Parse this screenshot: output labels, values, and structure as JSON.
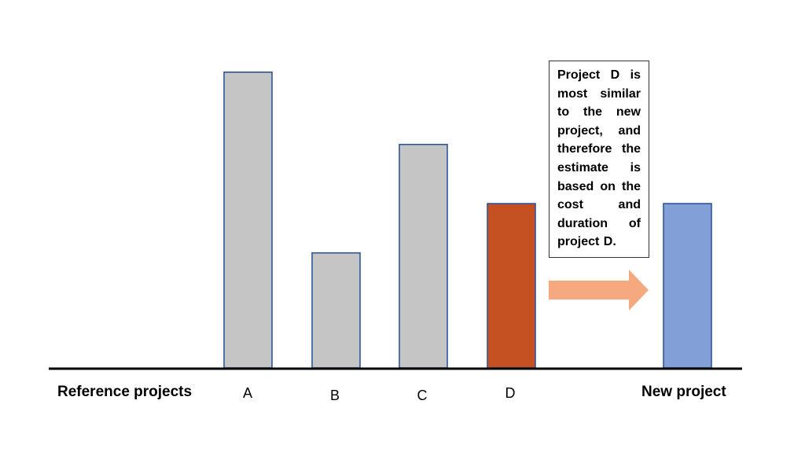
{
  "diagram": {
    "reference_label": "Reference projects",
    "new_project_label": "New project",
    "callout": "Project D is most similar to the new project, and therefore the estimate is based on the cost and duration of project D.",
    "bars": [
      {
        "id": "A",
        "label": "A",
        "relative_height": 0.9,
        "color": "#c5c5c5",
        "border": "#2f5597"
      },
      {
        "id": "B",
        "label": "B",
        "relative_height": 0.35,
        "color": "#c5c5c5",
        "border": "#2f5597"
      },
      {
        "id": "C",
        "label": "C",
        "relative_height": 0.68,
        "color": "#c5c5c5",
        "border": "#2f5597"
      },
      {
        "id": "D",
        "label": "D",
        "relative_height": 0.5,
        "color": "#c55122",
        "border": "#2f5597"
      },
      {
        "id": "new",
        "label": "",
        "relative_height": 0.5,
        "color": "#829fd8",
        "border": "#2f5597"
      }
    ],
    "arrow_color": "#f6a97f",
    "axis_color": "#000000"
  }
}
